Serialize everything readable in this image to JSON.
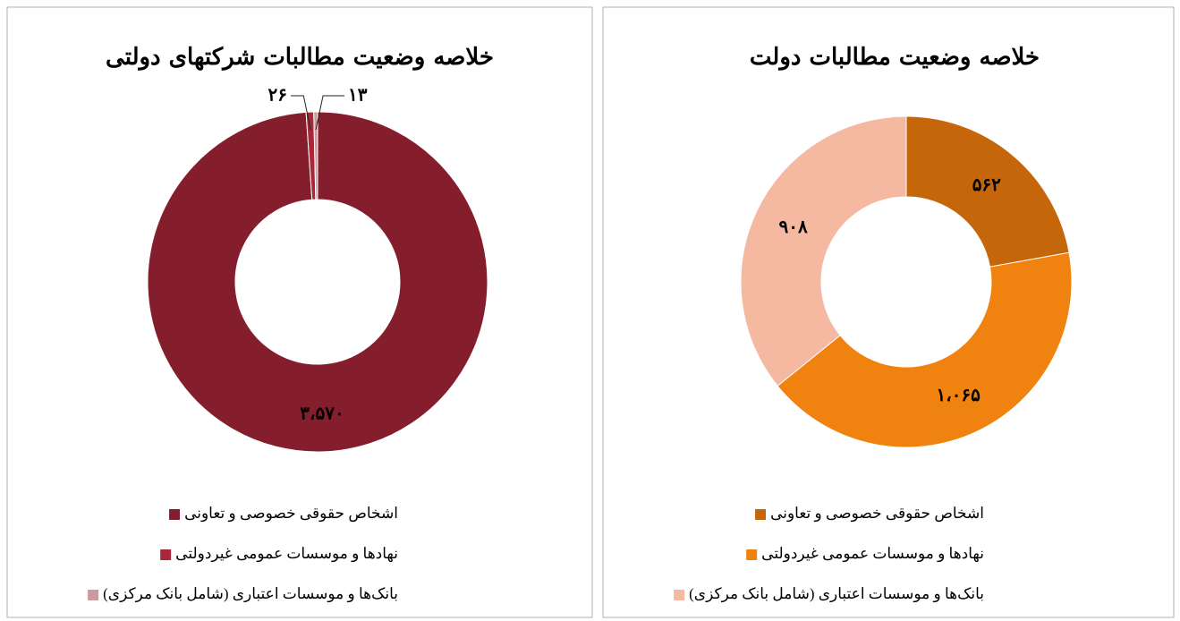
{
  "chart_data": [
    {
      "type": "donut",
      "title": "خلاصه وضعیت مطالبات شرکتهای دولتی",
      "categories": [
        "اشخاص حقوقی خصوصی و تعاونی",
        "نهادها و موسسات عمومی غیردولتی",
        "بانک‌ها و موسسات اعتباری (شامل بانک مرکزی)"
      ],
      "values": [
        3570,
        26,
        13
      ],
      "value_labels": [
        "۳،۵۷۰",
        "۲۶",
        "۱۳"
      ],
      "colors": [
        "#841e2c",
        "#a8283a",
        "#cc9aa1"
      ]
    },
    {
      "type": "donut",
      "title": "خلاصه وضعیت مطالبات دولت",
      "categories": [
        "اشخاص حقوقی خصوصی و تعاونی",
        "نهادها و موسسات عمومی غیردولتی",
        "بانک‌ها و موسسات اعتباری (شامل بانک مرکزی)"
      ],
      "values": [
        562,
        1065,
        908
      ],
      "value_labels": [
        "۵۶۲",
        "۱،۰۶۵",
        "۹۰۸"
      ],
      "colors": [
        "#c5660a",
        "#f0820f",
        "#f4b9a0"
      ]
    }
  ]
}
